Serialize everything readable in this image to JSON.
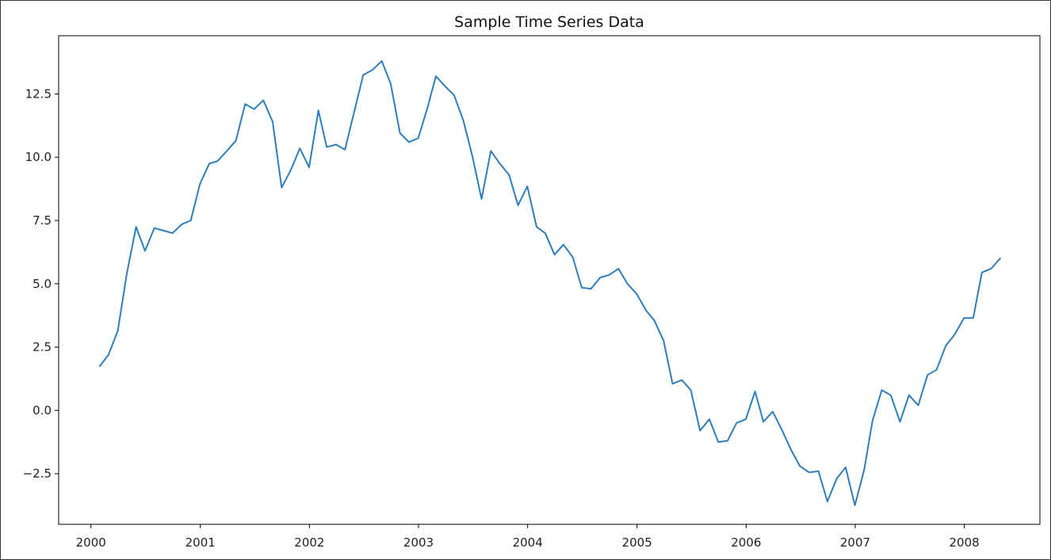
{
  "chart_data": {
    "type": "line",
    "title": "Sample Time Series Data",
    "xlabel": "",
    "ylabel": "",
    "grid": false,
    "line_color": "#2e7ebc",
    "xlim": [
      "1999-09-15",
      "2008-09-10"
    ],
    "ylim": [
      -4.5,
      14.8
    ],
    "x_ticks": [
      "2000-01-01",
      "2001-01-01",
      "2002-01-01",
      "2003-01-01",
      "2004-01-01",
      "2005-01-01",
      "2006-01-01",
      "2007-01-01",
      "2008-01-01"
    ],
    "x_tick_labels": [
      "2000",
      "2001",
      "2002",
      "2003",
      "2004",
      "2005",
      "2006",
      "2007",
      "2008"
    ],
    "y_ticks": [
      -2.5,
      0.0,
      2.5,
      5.0,
      7.5,
      10.0,
      12.5
    ],
    "y_tick_labels": [
      "−2.5",
      "0.0",
      "2.5",
      "5.0",
      "7.5",
      "10.0",
      "12.5"
    ],
    "series": [
      {
        "x": [
          "2000-01-31",
          "2000-02-29",
          "2000-03-31",
          "2000-04-30",
          "2000-05-31",
          "2000-06-30",
          "2000-07-31",
          "2000-08-31",
          "2000-09-30",
          "2000-10-31",
          "2000-11-30",
          "2000-12-31",
          "2001-01-31",
          "2001-02-28",
          "2001-03-31",
          "2001-04-30",
          "2001-05-31",
          "2001-06-30",
          "2001-07-31",
          "2001-08-31",
          "2001-09-30",
          "2001-10-31",
          "2001-11-30",
          "2001-12-31",
          "2002-01-31",
          "2002-02-28",
          "2002-03-31",
          "2002-04-30",
          "2002-05-31",
          "2002-06-30",
          "2002-07-31",
          "2002-08-31",
          "2002-09-30",
          "2002-10-31",
          "2002-11-30",
          "2002-12-31",
          "2003-01-31",
          "2003-02-28",
          "2003-03-31",
          "2003-04-30",
          "2003-05-31",
          "2003-06-30",
          "2003-07-31",
          "2003-08-31",
          "2003-09-30",
          "2003-10-31",
          "2003-11-30",
          "2003-12-31",
          "2004-01-31",
          "2004-02-29",
          "2004-03-31",
          "2004-04-30",
          "2004-05-31",
          "2004-06-30",
          "2004-07-31",
          "2004-08-31",
          "2004-09-30",
          "2004-10-31",
          "2004-11-30",
          "2004-12-31",
          "2005-01-31",
          "2005-02-28",
          "2005-03-31",
          "2005-04-30",
          "2005-05-31",
          "2005-06-30",
          "2005-07-31",
          "2005-08-31",
          "2005-09-30",
          "2005-10-31",
          "2005-11-30",
          "2005-12-31",
          "2006-01-31",
          "2006-02-28",
          "2006-03-31",
          "2006-04-30",
          "2006-05-31",
          "2006-06-30",
          "2006-07-31",
          "2006-08-31",
          "2006-09-30",
          "2006-10-31",
          "2006-11-30",
          "2006-12-31",
          "2007-01-31",
          "2007-02-28",
          "2007-03-31",
          "2007-04-30",
          "2007-05-31",
          "2007-06-30",
          "2007-07-31",
          "2007-08-31",
          "2007-09-30",
          "2007-10-31",
          "2007-11-30",
          "2007-12-31",
          "2008-01-31",
          "2008-02-29",
          "2008-03-31",
          "2008-04-30"
        ],
        "values": [
          1.75,
          2.2,
          3.15,
          5.4,
          7.25,
          6.3,
          7.2,
          7.1,
          7.0,
          7.35,
          7.5,
          8.95,
          9.75,
          9.85,
          10.25,
          10.65,
          12.1,
          11.9,
          12.25,
          11.4,
          8.8,
          9.5,
          10.35,
          9.6,
          11.85,
          10.4,
          10.5,
          10.3,
          11.8,
          13.25,
          13.45,
          13.8,
          12.9,
          10.95,
          10.6,
          10.75,
          11.95,
          13.2,
          12.8,
          12.45,
          11.45,
          10.05,
          8.35,
          10.25,
          9.75,
          9.3,
          8.1,
          8.85,
          7.25,
          7.0,
          6.15,
          6.55,
          6.05,
          4.85,
          4.8,
          5.25,
          5.35,
          5.6,
          5.0,
          4.6,
          3.95,
          3.55,
          2.75,
          1.05,
          1.2,
          0.8,
          -0.8,
          -0.35,
          -1.25,
          -1.2,
          -0.5,
          -0.35,
          0.75,
          -0.45,
          -0.05,
          -0.75,
          -1.55,
          -2.2,
          -2.45,
          -2.4,
          -3.6,
          -2.7,
          -2.25,
          -3.75,
          -2.35,
          -0.4,
          0.8,
          0.6,
          -0.45,
          0.6,
          0.2,
          1.4,
          1.6,
          2.55,
          3.0,
          3.65,
          3.65,
          5.45,
          5.6,
          6.0
        ]
      }
    ]
  }
}
